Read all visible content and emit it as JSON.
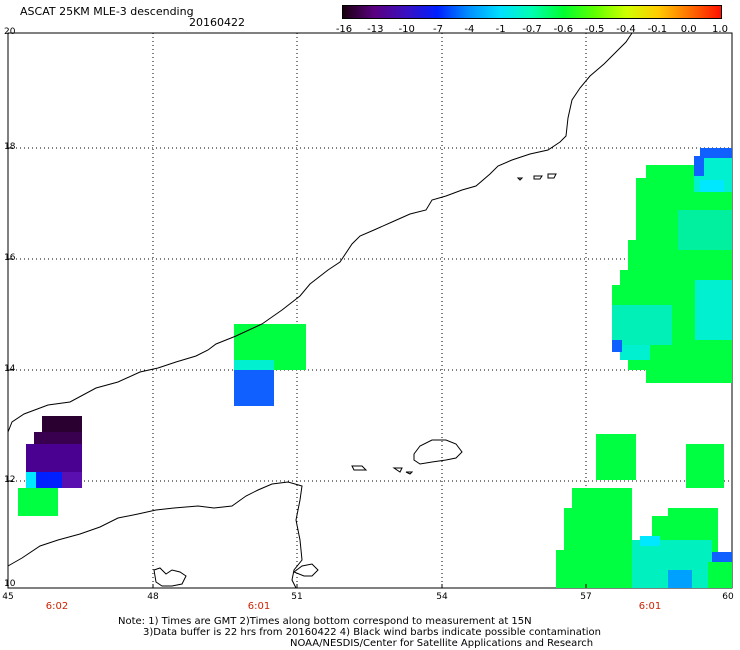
{
  "header": {
    "title": "ASCAT 25KM MLE-3 descending",
    "date": "20160422"
  },
  "colorbar": {
    "labels": [
      "-16",
      "-13",
      "-10",
      "-7",
      "-4",
      "-1",
      "-0.7",
      "-0.6",
      "-0.5",
      "-0.4",
      "-0.1",
      "0.0",
      "1.0"
    ],
    "colors": [
      "#1a0010",
      "#5a0080",
      "#3a10c0",
      "#0020ff",
      "#0090ff",
      "#00e0ff",
      "#00ffb0",
      "#00ff30",
      "#60ff00",
      "#d0ff00",
      "#ffcc00",
      "#ff7000",
      "#ff1000"
    ]
  },
  "axes": {
    "lat_labels": [
      "20",
      "18",
      "16",
      "14",
      "12",
      "10"
    ],
    "lon_labels": [
      "45",
      "48",
      "51",
      "54",
      "57",
      "60"
    ],
    "lat_range": [
      10,
      20
    ],
    "lon_range": [
      45,
      60
    ]
  },
  "time_labels": [
    {
      "text": "6:02",
      "lon": 46.0
    },
    {
      "text": "6:01",
      "lon": 50.2
    },
    {
      "text": "6:01",
      "lon": 58.3
    }
  ],
  "notes": {
    "line1": "Note: 1) Times are GMT 2)Times along bottom correspond to measurement at 15N",
    "line2": "3)Data buffer is 22 hrs from 20160422 4) Black wind barbs indicate possible contamination",
    "line3": "NOAA/NESDIS/Center for Satellite Applications and Research"
  },
  "map_colors": {
    "deep_purple": "#2a0030",
    "purple": "#4a0090",
    "violet": "#5a10b0",
    "blue": "#1060ff",
    "cyan": "#00f0d0",
    "aqua": "#00e8ff",
    "green": "#00ff40",
    "lightgreen": "#20ff30"
  }
}
